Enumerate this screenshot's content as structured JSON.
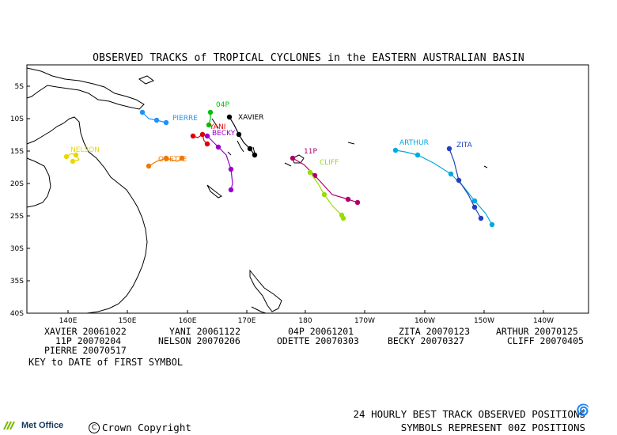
{
  "title": "OBSERVED TRACKS of TROPICAL CYCLONES in the EASTERN AUSTRALIAN BASIN",
  "axes": {
    "lat_labels": [
      "5S",
      "10S",
      "15S",
      "20S",
      "25S",
      "30S",
      "35S",
      "40S"
    ],
    "lon_labels": [
      "140E",
      "150E",
      "160E",
      "170E",
      "180",
      "170W",
      "160W",
      "150W",
      "140W"
    ]
  },
  "storm_labels": {
    "nelson": "NELSON",
    "pierre": "PIERRE",
    "odette": "ODETTE",
    "yani": "YANI",
    "becky": "BECKY",
    "p04": "04P",
    "xavier": "XAVIER",
    "p11": "11P",
    "cliff": "CLIFF",
    "arthur": "ARTHUR",
    "zita": "ZITA"
  },
  "storm_colors": {
    "xavier": "#000000",
    "p04": "#00c000",
    "yani": "#e00000",
    "becky": "#9900cc",
    "pierre": "#1e90ff",
    "nelson": "#e8d800",
    "odette": "#f07800",
    "p11": "#b0006a",
    "cliff": "#99dd00",
    "arthur": "#00aadd",
    "zita": "#2040c0"
  },
  "legend": {
    "col1": [
      "XAVIER 20061022",
      "11P 20070204",
      "PIERRE 20070517"
    ],
    "col2": [
      "YANI 20061122",
      "NELSON 20070206"
    ],
    "col3": [
      "04P 20061201",
      "ODETTE 20070303"
    ],
    "col4": [
      "ZITA 20070123",
      "BECKY 20070327"
    ],
    "col5": [
      "ARTHUR 20070125",
      "CLIFF 20070405"
    ]
  },
  "key_text": "KEY to DATE of FIRST SYMBOL",
  "footer": {
    "line1": "24 HOURLY BEST TRACK OBSERVED POSITIONS",
    "line2": "SYMBOLS REPRESENT 00Z POSITIONS",
    "copyright": "Crown Copyright",
    "copyright_symbol": "C",
    "metoffice": "Met Office",
    "cyclone_symbol": "🌀",
    "icons": [
      "cyclone-symbol-icon",
      "met-office-logo-icon",
      "copyright-icon"
    ]
  }
}
